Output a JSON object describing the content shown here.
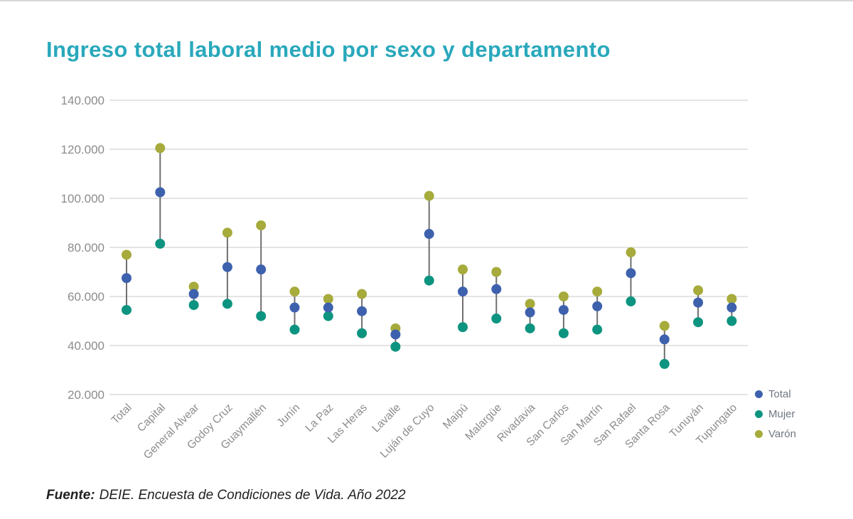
{
  "title": {
    "text": "Ingreso total laboral medio por sexo y departamento",
    "color": "#29a8bc"
  },
  "legend": {
    "items": [
      {
        "label": "Total",
        "color": "#3e61ae"
      },
      {
        "label": "Mujer",
        "color": "#0d9480"
      },
      {
        "label": "Varón",
        "color": "#a6ab3b"
      }
    ]
  },
  "source": {
    "prefix": "Fuente:",
    "text": "DEIE. Encuesta de Condiciones de Vida. Año 2022"
  },
  "chart_data": {
    "type": "scatter",
    "subtype": "dumbbell-dot-plot",
    "title": "Ingreso total laboral medio por sexo y departamento",
    "xlabel": "",
    "ylabel": "",
    "ylim": [
      20000,
      140000
    ],
    "ytick_step": 20000,
    "ytick_labels": [
      "20.000",
      "40.000",
      "60.000",
      "80.000",
      "100.000",
      "120.000",
      "140.000"
    ],
    "grid": true,
    "legend_position": "right-bottom",
    "categories": [
      "Total",
      "Capital",
      "General Alvear",
      "Godoy Cruz",
      "Guaymallén",
      "Junín",
      "La Paz",
      "Las Heras",
      "Lavalle",
      "Luján de Cuyo",
      "Maipú",
      "Malargüe",
      "Rivadavia",
      "San Carlos",
      "San Martín",
      "San Rafael",
      "Santa Rosa",
      "Tunuyán",
      "Tupungato"
    ],
    "series": [
      {
        "name": "Total",
        "color": "#3e61ae",
        "values": [
          67500,
          102500,
          61000,
          72000,
          71000,
          55500,
          55500,
          54000,
          44500,
          85500,
          62000,
          63000,
          53500,
          54500,
          56000,
          69500,
          42500,
          57500,
          55500
        ]
      },
      {
        "name": "Mujer",
        "color": "#0d9480",
        "values": [
          54500,
          81500,
          56500,
          57000,
          52000,
          46500,
          52000,
          45000,
          39500,
          66500,
          47500,
          51000,
          47000,
          45000,
          46500,
          58000,
          32500,
          49500,
          50000
        ]
      },
      {
        "name": "Varón",
        "color": "#a6ab3b",
        "values": [
          77000,
          120500,
          64000,
          86000,
          89000,
          62000,
          59000,
          61000,
          47000,
          101000,
          71000,
          70000,
          57000,
          60000,
          62000,
          78000,
          48000,
          62500,
          59000
        ]
      }
    ],
    "connector_color": "#6f6f6f",
    "gridline_color": "#e4e4e4",
    "axis_text_color": "#8c8c8c"
  }
}
